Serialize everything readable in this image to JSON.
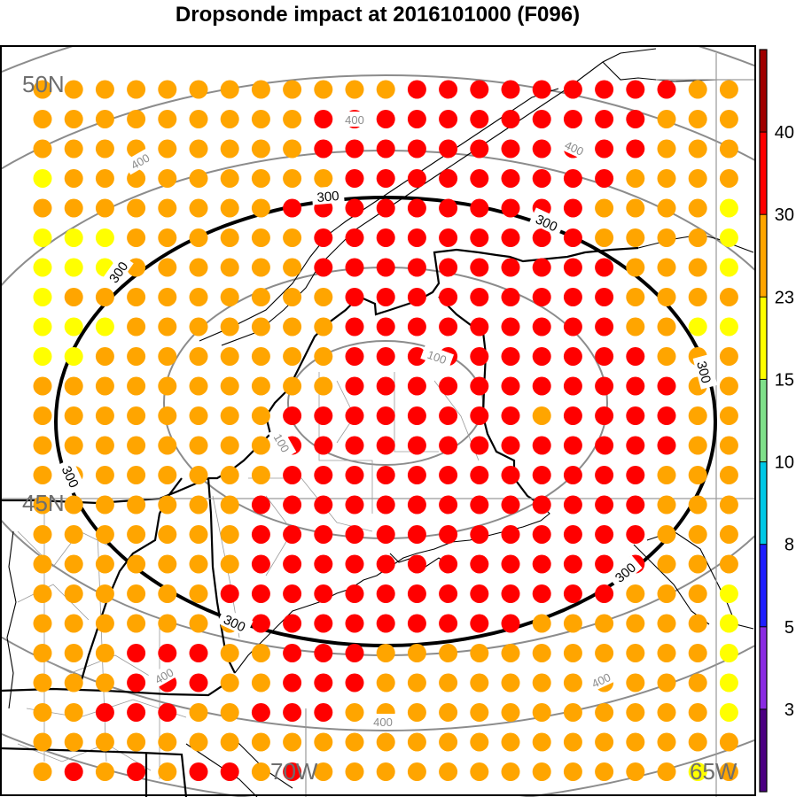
{
  "title": "Dropsonde impact at 2016101000 (F096)",
  "lat_labels": [
    "50N",
    "45N"
  ],
  "lon_labels": [
    "70W",
    "65W"
  ],
  "contour_labels": {
    "bold": "300",
    "gray": [
      "100",
      "400"
    ]
  },
  "colorbar": {
    "tick_labels": [
      "40",
      "30",
      "23",
      "15",
      "10",
      "8",
      "5",
      "3"
    ],
    "colors": [
      "#4b0082",
      "#8a2be2",
      "#1e1eff",
      "#00c8e6",
      "#7fe08a",
      "#ffff00",
      "#ffa500",
      "#ff0000",
      "#a00000"
    ]
  },
  "dot_colors": {
    "yellow": "#ffff00",
    "orange": "#ffa500",
    "red": "#ff0000"
  },
  "grid_rows": [
    "OOOOOOOOOOOORRRRRRRRROO",
    "OOOOOOOOORRRRRRRRRRROOO",
    "OOOOOOOOORRRRRRRRRRROOO",
    "YOOOOOOOOORRRRRRRRROOOO",
    "OOOOOOOORRRRRRRRRROOOOY",
    "YYYOOOOOORRRRRRRRROOOOY",
    "YYYOOOOOORRRRRRRRRROOOY",
    "YOOOOOOOOORRRRRRRRROOOO",
    "YYYOOOOOOORRRRRRRRROOYY",
    "YYOOOOOOOORRRRRRRRRROOO",
    "OOOOOOOOOORRRRRRRRRRROO",
    "OOOOOOOORRRRRRRRORRRROO",
    "OOOOOOOORRRRRRRRRRRRROO",
    "OOOOOOOORRRRRRRRRRRROOO",
    "OOOOOOORRRRRRRRRRRRROOO",
    "OOOOOOORRRRRRRRRRRRROOO",
    "OOOOOOORRRRRRRRRRRRROOO",
    "OOOOOORRRRRRRRRRRRROOOY",
    "OOOOOOORRRRRRRRROOOOOOY",
    "OOORRROORRROOOOOOOOOOOY",
    "OOORRROORRROOOOOOOOOOOY",
    "OORRROORRROOOOOOOOOOOOY",
    "OOOOOOOOOOOOOOOOOOOOOOO",
    "ORORORROROOOOOOOOOOOOYO"
  ]
}
